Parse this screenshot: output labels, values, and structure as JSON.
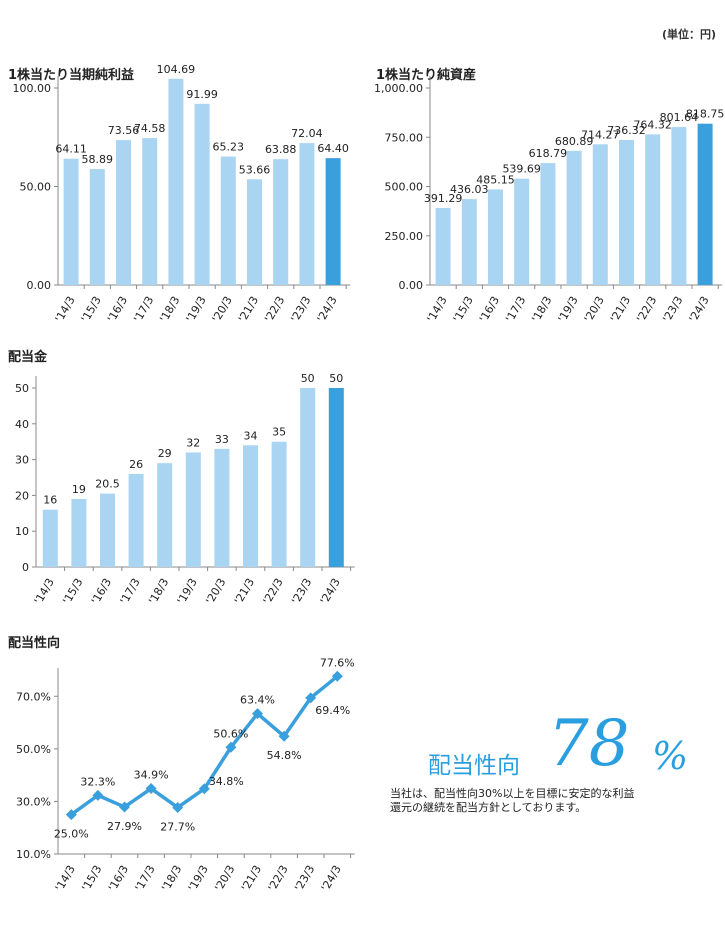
{
  "unit_label": "(単位：円)",
  "policy": {
    "label": "配当性向",
    "value": "78",
    "percent": "%",
    "text_lines": [
      "当社は、配当性向30%以上を目標に安定的な利益",
      "還元の継続を配当方針としております。"
    ]
  },
  "chart_data": [
    {
      "id": "eps",
      "type": "bar",
      "title": "1株当たり当期純利益",
      "categories": [
        "'14/3",
        "'15/3",
        "'16/3",
        "'17/3",
        "'18/3",
        "'19/3",
        "'20/3",
        "'21/3",
        "'22/3",
        "'23/3",
        "'24/3"
      ],
      "values": [
        64.11,
        58.89,
        73.56,
        74.58,
        104.69,
        91.99,
        65.23,
        53.66,
        63.88,
        72.04,
        64.4
      ],
      "labels": [
        "64.11",
        "58.89",
        "73.56",
        "74.58",
        "104.69",
        "91.99",
        "65.23",
        "53.66",
        "63.88",
        "72.04",
        "64.40"
      ],
      "ylim": [
        0,
        100
      ],
      "yticks": [
        "0.00",
        "50.00",
        "100.00"
      ],
      "ytick_values": [
        0,
        50,
        100
      ],
      "colors": {
        "bar": "#a9d5f3",
        "highlight": "#3a9fdd",
        "axis": "#888888"
      }
    },
    {
      "id": "bps",
      "type": "bar",
      "title": "1株当たり純資産",
      "categories": [
        "'14/3",
        "'15/3",
        "'16/3",
        "'17/3",
        "'18/3",
        "'19/3",
        "'20/3",
        "'21/3",
        "'22/3",
        "'23/3",
        "'24/3"
      ],
      "values": [
        391.29,
        436.03,
        485.15,
        539.69,
        618.79,
        680.89,
        714.27,
        736.32,
        764.32,
        801.64,
        818.75
      ],
      "labels": [
        "391.29",
        "436.03",
        "485.15",
        "539.69",
        "618.79",
        "680.89",
        "714.27",
        "736.32",
        "764.32",
        "801.64",
        "818.75"
      ],
      "ylim": [
        0,
        1000
      ],
      "yticks": [
        "0.00",
        "250.00",
        "500.00",
        "750.00",
        "1,000.00"
      ],
      "ytick_values": [
        0,
        250,
        500,
        750,
        1000
      ],
      "colors": {
        "bar": "#a9d5f3",
        "highlight": "#3a9fdd",
        "axis": "#888888"
      }
    },
    {
      "id": "dividend",
      "type": "bar",
      "title": "配当金",
      "categories": [
        "'14/3",
        "'15/3",
        "'16/3",
        "'17/3",
        "'18/3",
        "'19/3",
        "'20/3",
        "'21/3",
        "'22/3",
        "'23/3",
        "'24/3"
      ],
      "values": [
        16,
        19,
        20.5,
        26,
        29,
        32,
        33,
        34,
        35,
        50,
        50
      ],
      "labels": [
        "16",
        "19",
        "20.5",
        "26",
        "29",
        "32",
        "33",
        "34",
        "35",
        "50",
        "50"
      ],
      "ylim": [
        0,
        50
      ],
      "yticks": [
        "0",
        "10",
        "20",
        "30",
        "40",
        "50"
      ],
      "ytick_values": [
        0,
        10,
        20,
        30,
        40,
        50
      ],
      "colors": {
        "bar": "#a9d5f3",
        "highlight": "#3a9fdd",
        "axis": "#888888"
      }
    },
    {
      "id": "payout",
      "type": "line",
      "title": "配当性向",
      "categories": [
        "'14/3",
        "'15/3",
        "'16/3",
        "'17/3",
        "'18/3",
        "'19/3",
        "'20/3",
        "'21/3",
        "'22/3",
        "'23/3",
        "'24/3"
      ],
      "values": [
        25.0,
        32.3,
        27.9,
        34.9,
        27.7,
        34.8,
        50.6,
        63.4,
        54.8,
        69.4,
        77.6
      ],
      "labels": [
        "25.0%",
        "32.3%",
        "27.9%",
        "34.9%",
        "27.7%",
        "34.8%",
        "50.6%",
        "63.4%",
        "54.8%",
        "69.4%",
        "77.6%"
      ],
      "ylim": [
        10,
        80
      ],
      "yticks": [
        "10.0%",
        "30.0%",
        "50.0%",
        "70.0%"
      ],
      "ytick_values": [
        10,
        30,
        50,
        70
      ],
      "colors": {
        "line": "#3a9fdd",
        "axis": "#888888"
      }
    }
  ]
}
